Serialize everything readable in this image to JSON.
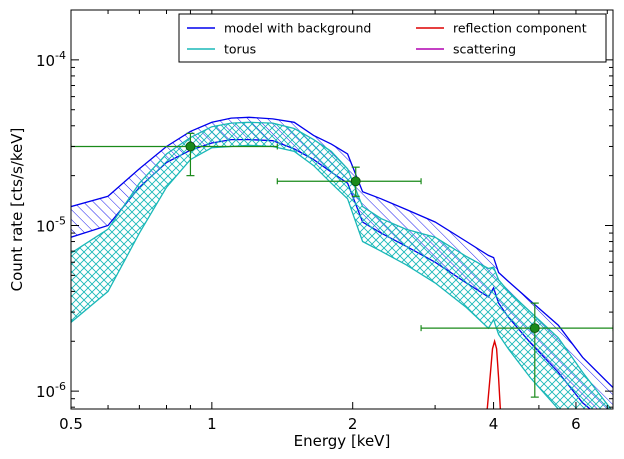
{
  "chart_data": {
    "type": "line",
    "xlabel": "Energy [keV]",
    "ylabel": "Count rate [cts/s/keV]",
    "xscale": "log",
    "yscale": "log",
    "xlim": [
      0.5,
      7.2
    ],
    "ylim": [
      7.8e-07,
      0.0002
    ],
    "xticks": [
      {
        "value": 0.5,
        "label": "0.5"
      },
      {
        "value": 1,
        "label": "1"
      },
      {
        "value": 2,
        "label": "2"
      },
      {
        "value": 4,
        "label": "4"
      },
      {
        "value": 6,
        "label": "6"
      }
    ],
    "yticks": [
      {
        "value": 1e-06,
        "base": "10",
        "exp": "-6"
      },
      {
        "value": 1e-05,
        "base": "10",
        "exp": "-5"
      },
      {
        "value": 0.0001,
        "base": "10",
        "exp": "-4"
      }
    ],
    "legend": {
      "placement": "top-right",
      "columns": 2,
      "entries": [
        {
          "label": "model with background",
          "color": "#0000ee"
        },
        {
          "label": "reflection component",
          "color": "#dd0000"
        },
        {
          "label": "torus",
          "color": "#1ab8b8"
        },
        {
          "label": "scattering",
          "color": "#b000b0"
        }
      ]
    },
    "series": [
      {
        "color": "#0000ee",
        "style": "band-hatched",
        "x": [
          0.5,
          0.6,
          0.7,
          0.8,
          0.9,
          1.0,
          1.1,
          1.2,
          1.35,
          1.5,
          1.65,
          1.8,
          1.95,
          2.1,
          2.3,
          2.6,
          3.0,
          3.5,
          3.9,
          4.0,
          4.1,
          4.3,
          4.8,
          5.5,
          6.2,
          7.2
        ],
        "upper": [
          1.3e-05,
          1.5e-05,
          2.2e-05,
          3e-05,
          3.7e-05,
          4.2e-05,
          4.45e-05,
          4.5e-05,
          4.4e-05,
          4.2e-05,
          3.5e-05,
          3.1e-05,
          2.7e-05,
          1.6e-05,
          1.45e-05,
          1.25e-05,
          1.05e-05,
          8e-06,
          6.6e-06,
          6.4e-06,
          5.2e-06,
          4.6e-06,
          3.5e-06,
          2.5e-06,
          1.6e-06,
          1.05e-06
        ],
        "lower": [
          8.5e-06,
          1e-05,
          1.7e-05,
          2.4e-05,
          2.85e-05,
          3.15e-05,
          3.3e-05,
          3.3e-05,
          3.25e-05,
          2.9e-05,
          2.5e-05,
          2.1e-05,
          1.8e-05,
          1.05e-05,
          9e-06,
          7.5e-06,
          6e-06,
          4.5e-06,
          3.7e-06,
          4.2e-06,
          3.4e-06,
          2.8e-06,
          1.95e-06,
          1.3e-06,
          8.5e-07,
          6e-07
        ]
      },
      {
        "color": "#1ab8b8",
        "style": "band-crosshatched",
        "x": [
          0.5,
          0.6,
          0.7,
          0.8,
          0.9,
          1.0,
          1.1,
          1.2,
          1.35,
          1.5,
          1.65,
          1.8,
          1.95,
          2.1,
          2.3,
          2.6,
          3.0,
          3.5,
          3.9,
          4.0,
          4.1,
          4.3,
          4.8,
          5.5,
          6.2,
          7.2
        ],
        "upper": [
          6.8e-06,
          9.5e-06,
          1.8e-05,
          2.7e-05,
          3.4e-05,
          3.95e-05,
          4.15e-05,
          4.2e-05,
          4.15e-05,
          3.85e-05,
          3.3e-05,
          2.8e-05,
          2.2e-05,
          1.3e-05,
          1.1e-05,
          9.5e-06,
          8.5e-06,
          6.5e-06,
          5.5e-06,
          5.6e-06,
          4.7e-06,
          4e-06,
          3e-06,
          2.1e-06,
          1.3e-06,
          7.5e-07
        ],
        "lower": [
          2.6e-06,
          4e-06,
          9e-06,
          1.7e-05,
          2.5e-05,
          2.95e-05,
          3e-05,
          3.05e-05,
          3e-05,
          2.8e-05,
          2.3e-05,
          1.8e-05,
          1.45e-05,
          8e-06,
          7e-06,
          5.8e-06,
          4.5e-06,
          3.2e-06,
          2.4e-06,
          2.7e-06,
          2.2e-06,
          1.8e-06,
          1.2e-06,
          7.8e-07,
          5.5e-07,
          4e-07
        ]
      },
      {
        "color": "#dd0000",
        "style": "line",
        "x": [
          3.82,
          3.88,
          3.94,
          3.98,
          4.02,
          4.06,
          4.1,
          4.14,
          4.2
        ],
        "values": [
          6e-07,
          8e-07,
          1.3e-06,
          1.8e-06,
          2e-06,
          1.8e-06,
          1.2e-06,
          7.5e-07,
          5e-07
        ]
      }
    ],
    "data_points": [
      {
        "x": 0.9,
        "y": 3e-05,
        "xerr_low": 0.5,
        "xerr_high": 1.38,
        "yerr_low": 2e-05,
        "yerr_high": 3.6e-05
      },
      {
        "x": 2.03,
        "y": 1.85e-05,
        "xerr_low": 1.38,
        "xerr_high": 2.8,
        "yerr_low": 1.5e-05,
        "yerr_high": 2.25e-05
      },
      {
        "x": 4.9,
        "y": 2.4e-06,
        "xerr_low": 2.8,
        "xerr_high": 7.2,
        "yerr_low": 9.2e-07,
        "yerr_high": 3.4e-06
      }
    ],
    "points_color": "#1a8a1a",
    "grid": false
  }
}
